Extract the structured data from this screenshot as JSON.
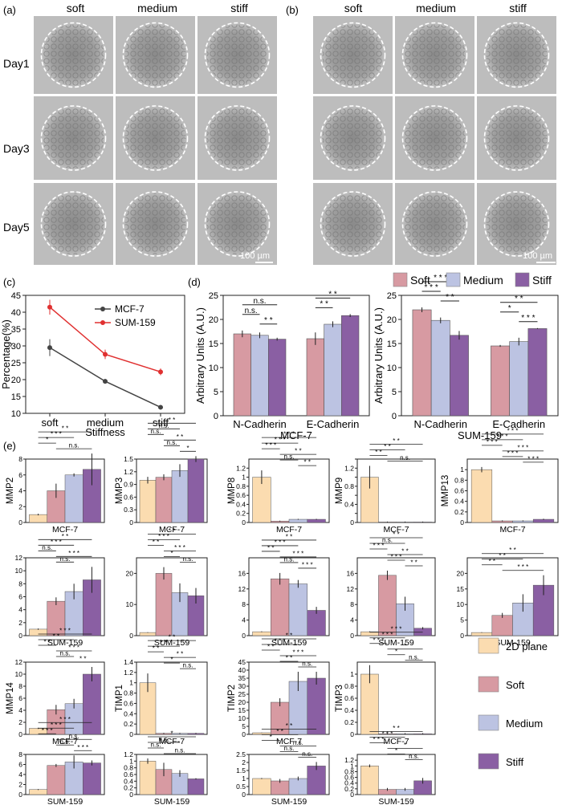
{
  "panels_micro": {
    "a": {
      "label": "(a)"
    },
    "b": {
      "label": "(b)"
    },
    "columns": [
      "soft",
      "medium",
      "stiff"
    ],
    "rows": [
      "Day1",
      "Day3",
      "Day5"
    ],
    "scalebar": "100 µm"
  },
  "chart_data": [
    {
      "id": "c",
      "panel_label": "(c)",
      "type": "line",
      "x": [
        "soft",
        "medium",
        "stiff"
      ],
      "xlabel": "Stiffness",
      "ylabel": "Percentage(%)",
      "ylim": [
        10,
        45
      ],
      "yticks": [
        10,
        15,
        20,
        25,
        30,
        35,
        40,
        45
      ],
      "series": [
        {
          "name": "MCF-7",
          "values": [
            29.5,
            19.5,
            11.8
          ],
          "errors": [
            2.5,
            0.7,
            0.3
          ],
          "color": "#444444"
        },
        {
          "name": "SUM-159",
          "values": [
            41.5,
            27.5,
            22.3
          ],
          "errors": [
            2.2,
            1.4,
            1.0
          ],
          "color": "#e03030"
        }
      ],
      "legend": "top-right"
    },
    {
      "id": "d1",
      "panel_label": "(d)",
      "type": "bar",
      "title": "MCF-7",
      "ylabel": "Arbitrary Units (A.U.)",
      "categories": [
        "N-Cadherin",
        "E-Cadherin"
      ],
      "ylim": [
        0,
        25
      ],
      "yticks": [
        0,
        5,
        10,
        15,
        20,
        25
      ],
      "series": [
        {
          "name": "Soft",
          "values": [
            17.0,
            16.0
          ],
          "errors": [
            0.7,
            1.3
          ]
        },
        {
          "name": "Medium",
          "values": [
            16.7,
            19.0
          ],
          "errors": [
            0.6,
            0.6
          ]
        },
        {
          "name": "Stiff",
          "values": [
            15.9,
            20.8
          ],
          "errors": [
            0.3,
            0.3
          ]
        }
      ],
      "annotations": [
        "n.s.",
        "n.s.",
        "* *",
        "* *",
        "* *"
      ]
    },
    {
      "id": "d2",
      "type": "bar",
      "title": "SUM-159",
      "ylabel": "Arbitrary Units (A.U.)",
      "categories": [
        "N-Cadherin",
        "E-Cadherin"
      ],
      "ylim": [
        0,
        25
      ],
      "yticks": [
        0,
        5,
        10,
        15,
        20,
        25
      ],
      "series": [
        {
          "name": "Soft",
          "values": [
            22.0,
            14.5
          ],
          "errors": [
            0.5,
            0.2
          ]
        },
        {
          "name": "Medium",
          "values": [
            19.8,
            15.4
          ],
          "errors": [
            0.6,
            0.8
          ]
        },
        {
          "name": "Stiff",
          "values": [
            16.7,
            18.1
          ],
          "errors": [
            0.9,
            0.1
          ]
        }
      ],
      "annotations": [
        "* * *",
        "* * *",
        "* *",
        "* *",
        "*",
        "* * *"
      ],
      "legend": [
        "Soft",
        "Medium",
        "Stiff"
      ]
    },
    {
      "id": "MMP2_MCF7",
      "panel_label": "(e)",
      "type": "bar",
      "ylabel": "MMP2",
      "xlabel": "MCF-7",
      "categories": [
        "2D plane",
        "Soft",
        "Medium",
        "Stiff"
      ],
      "values": [
        1,
        4,
        6,
        6.7
      ],
      "errors": [
        0.1,
        0.9,
        0.2,
        2.0
      ],
      "ylim": [
        0,
        8
      ],
      "yticks": [
        0,
        2,
        4,
        6,
        8
      ],
      "annotations": [
        "* *",
        "* * *",
        "*",
        "n.s."
      ]
    },
    {
      "id": "MMP3_MCF7",
      "type": "bar",
      "ylabel": "MMP3",
      "xlabel": "MCF-7",
      "categories": [
        "2D plane",
        "Soft",
        "Medium",
        "Stiff"
      ],
      "values": [
        1.0,
        1.07,
        1.23,
        1.5
      ],
      "errors": [
        0.08,
        0.07,
        0.15,
        0.07
      ],
      "ylim": [
        0,
        1.5
      ],
      "yticks": [
        0,
        0.3,
        0.6,
        0.9,
        1.2,
        1.5
      ],
      "annotations": [
        "* *",
        "n.s.",
        "n.s.",
        "* *",
        "n.s.",
        "*"
      ]
    },
    {
      "id": "MMP8_MCF7",
      "type": "bar",
      "ylabel": "MMP8",
      "xlabel": "MCF-7",
      "categories": [
        "2D plane",
        "Soft",
        "Medium",
        "Stiff"
      ],
      "values": [
        1.0,
        0.03,
        0.07,
        0.07
      ],
      "errors": [
        0.15,
        0.01,
        0.01,
        0.01
      ],
      "ylim": [
        0,
        1.4
      ],
      "yticks": [
        0,
        0.2,
        0.4,
        0.6,
        0.8,
        1.0,
        1.2
      ],
      "annotations": [
        "* * *",
        "* * *",
        "* * *",
        "* *",
        "n.s.",
        "* *"
      ]
    },
    {
      "id": "MMP9_MCF7",
      "type": "bar",
      "ylabel": "MMP9",
      "xlabel": "MCF-7",
      "categories": [
        "2D plane",
        "Soft",
        "Medium",
        "Stiff"
      ],
      "values": [
        1.0,
        0.01,
        0.01,
        0.01
      ],
      "errors": [
        0.25,
        0.01,
        0.01,
        0.01
      ],
      "ylim": [
        0,
        1.4
      ],
      "yticks": [
        0,
        0.2,
        0.4,
        0.6,
        0.8,
        1.0,
        1.2,
        1.4
      ],
      "annotations": [
        "* *",
        "* *",
        "* *",
        "n.s."
      ]
    },
    {
      "id": "MMP13_MCF7",
      "type": "bar",
      "ylabel": "MMP13",
      "xlabel": "MCF-7",
      "categories": [
        "2D plane",
        "Soft",
        "Medium",
        "Stiff"
      ],
      "values": [
        1.0,
        0.03,
        0.03,
        0.06
      ],
      "errors": [
        0.05,
        0.01,
        0.01,
        0.01
      ],
      "ylim": [
        0,
        1.2
      ],
      "yticks": [
        0,
        0.2,
        0.4,
        0.6,
        0.8,
        1.0
      ],
      "annotations": [
        "* * *",
        "* * *",
        "* * *",
        "* * *",
        "* * *",
        "* * *"
      ]
    },
    {
      "id": "MMP2_SUM159",
      "type": "bar",
      "xlabel": "SUM-159",
      "categories": [
        "2D plane",
        "Soft",
        "Medium",
        "Stiff"
      ],
      "values": [
        1,
        5.3,
        6.8,
        8.6
      ],
      "errors": [
        0.1,
        0.6,
        1.2,
        2.0
      ],
      "ylim": [
        0,
        12
      ],
      "yticks": [
        0,
        2,
        4,
        6,
        8,
        10,
        12
      ],
      "annotations": [
        "* *",
        "* * *",
        "n.s.",
        "* * *",
        "n.s."
      ]
    },
    {
      "id": "MMP3_SUM159",
      "type": "bar",
      "xlabel": "SUM-159",
      "categories": [
        "2D plane",
        "Soft",
        "Medium",
        "Stiff"
      ],
      "values": [
        1,
        20,
        13.8,
        12.8
      ],
      "errors": [
        0.1,
        2.0,
        3.0,
        2.5
      ],
      "ylim": [
        0,
        25
      ],
      "yticks": [
        0,
        10,
        20
      ],
      "annotations": [
        "* *",
        "* * *",
        "* *",
        "* * *",
        "*",
        "n.s."
      ]
    },
    {
      "id": "MMP8_SUM159",
      "type": "bar",
      "xlabel": "SUM-159",
      "categories": [
        "2D plane",
        "Soft",
        "Medium",
        "Stiff"
      ],
      "values": [
        1,
        14.6,
        13.3,
        6.5
      ],
      "errors": [
        0.1,
        1.5,
        1.0,
        0.9
      ],
      "ylim": [
        0,
        20
      ],
      "yticks": [
        0,
        4,
        8,
        12,
        16
      ],
      "annotations": [
        "* *",
        "* * *",
        "* *",
        "* * *",
        "n.s.",
        "* * *"
      ]
    },
    {
      "id": "MMP9_SUM159",
      "type": "bar",
      "xlabel": "SUM-159",
      "categories": [
        "2D plane",
        "Soft",
        "Medium",
        "Stiff"
      ],
      "values": [
        1,
        15.5,
        8.2,
        1.9
      ],
      "errors": [
        0.1,
        1.2,
        1.8,
        0.3
      ],
      "ylim": [
        0,
        20
      ],
      "yticks": [
        0,
        4,
        8,
        12,
        16
      ],
      "annotations": [
        "* *",
        "n.s.",
        "* * *",
        "* *",
        "* * *",
        "* *"
      ]
    },
    {
      "id": "MMP13_SUM159",
      "type": "bar",
      "xlabel": "SUM-159",
      "categories": [
        "2D plane",
        "Soft",
        "Medium",
        "Stiff"
      ],
      "values": [
        1,
        6.5,
        10.5,
        16.2
      ],
      "errors": [
        0.1,
        0.8,
        2.8,
        3.2
      ],
      "ylim": [
        0,
        25
      ],
      "yticks": [
        0,
        5,
        10,
        15,
        20
      ],
      "annotations": [
        "* *",
        "* *",
        "* *",
        "* * *"
      ]
    },
    {
      "id": "MMP14_MCF7",
      "type": "bar",
      "ylabel": "MMP14",
      "xlabel": "MCF-7",
      "categories": [
        "2D plane",
        "Soft",
        "Medium",
        "Stiff"
      ],
      "values": [
        1,
        4.1,
        5.1,
        10
      ],
      "errors": [
        0.1,
        0.8,
        0.8,
        1.2
      ],
      "ylim": [
        0,
        12
      ],
      "yticks": [
        0,
        2,
        4,
        6,
        8,
        10,
        12
      ],
      "annotations": [
        "* * *",
        "* *",
        "* *",
        "* * *",
        "n.s.",
        "* *"
      ]
    },
    {
      "id": "TIMP1_MCF7",
      "type": "bar",
      "ylabel": "TIMP1",
      "xlabel": "MCF-7",
      "categories": [
        "2D plane",
        "Soft",
        "Medium",
        "Stiff"
      ],
      "values": [
        1.0,
        0.02,
        0.02,
        0.02
      ],
      "errors": [
        0.18,
        0.01,
        0.01,
        0.01
      ],
      "ylim": [
        0,
        1.4
      ],
      "yticks": [
        0,
        0.2,
        0.4,
        0.6,
        0.8,
        1.0,
        1.2,
        1.4
      ],
      "annotations": [
        "* *",
        "* *",
        "* *",
        "* *",
        "*",
        "n.s."
      ]
    },
    {
      "id": "TIMP2_MCF7",
      "type": "bar",
      "ylabel": "TIMP2",
      "xlabel": "MCF-7",
      "categories": [
        "2D plane",
        "Soft",
        "Medium",
        "Stiff"
      ],
      "values": [
        1,
        20,
        33,
        35
      ],
      "errors": [
        0.1,
        2.5,
        6.0,
        4.0
      ],
      "ylim": [
        0,
        45
      ],
      "yticks": [
        0,
        5,
        10,
        15,
        20,
        25,
        30,
        35,
        40,
        45
      ],
      "annotations": [
        "* *",
        "* * *",
        "* *",
        "* * *",
        "* *",
        "n.s."
      ]
    },
    {
      "id": "TIMP3_MCF7",
      "type": "bar",
      "ylabel": "TIMP3",
      "xlabel": "MCF-7",
      "categories": [
        "2D plane",
        "Soft",
        "Medium",
        "Stiff"
      ],
      "values": [
        1.0,
        0.01,
        0.01,
        0.01
      ],
      "errors": [
        0.15,
        0.01,
        0.01,
        0.01
      ],
      "ylim": [
        0,
        1.2
      ],
      "yticks": [
        0,
        0.2,
        0.4,
        0.6,
        0.8,
        1.0
      ],
      "annotations": [
        "* * *",
        "* * *",
        "* * *",
        "*",
        "*",
        "n.s."
      ]
    },
    {
      "id": "MMP14_SUM159",
      "type": "bar",
      "xlabel": "SUM-159",
      "categories": [
        "2D plane",
        "Soft",
        "Medium",
        "Stiff"
      ],
      "values": [
        1,
        5.8,
        6.5,
        6.3
      ],
      "errors": [
        0.1,
        0.3,
        1.3,
        0.5
      ],
      "ylim": [
        0,
        8
      ],
      "yticks": [
        0,
        2,
        4,
        6,
        8
      ],
      "annotations": [
        "* * *",
        "* * *",
        "* * *",
        "n.s.",
        "n.s.",
        "* * *"
      ]
    },
    {
      "id": "TIMP1_SUM159",
      "type": "bar",
      "xlabel": "SUM-159",
      "categories": [
        "2D plane",
        "Soft",
        "Medium",
        "Stiff"
      ],
      "values": [
        1.0,
        0.75,
        0.63,
        0.47
      ],
      "errors": [
        0.08,
        0.2,
        0.1,
        0.02
      ],
      "ylim": [
        0,
        1.2
      ],
      "yticks": [
        0,
        0.2,
        0.4,
        0.6,
        0.8,
        1.0,
        1.2
      ],
      "annotations": [
        "*",
        "n.s.",
        "n.s.",
        "n.s."
      ]
    },
    {
      "id": "TIMP2_SUM159",
      "type": "bar",
      "xlabel": "SUM-159",
      "categories": [
        "2D plane",
        "Soft",
        "Medium",
        "Stiff"
      ],
      "values": [
        1.0,
        0.85,
        1.0,
        1.78
      ],
      "errors": [
        0.03,
        0.12,
        0.12,
        0.25
      ],
      "ylim": [
        0,
        2.5
      ],
      "yticks": [
        0,
        0.5,
        1.0,
        1.5,
        2.0,
        2.5
      ],
      "annotations": [
        "* *",
        "* *",
        "*",
        "n.s.",
        "n.s.",
        "n.s."
      ]
    },
    {
      "id": "TIMP3_SUM159",
      "type": "bar",
      "xlabel": "SUM-159",
      "categories": [
        "2D plane",
        "Soft",
        "Medium",
        "Stiff"
      ],
      "values": [
        1.0,
        0.18,
        0.18,
        0.48
      ],
      "errors": [
        0.05,
        0.05,
        0.05,
        0.1
      ],
      "ylim": [
        0,
        1.4
      ],
      "yticks": [
        0,
        0.2,
        0.4,
        0.6,
        0.8,
        1.0,
        1.2
      ],
      "annotations": [
        "* *",
        "* * *",
        "* * *",
        "*",
        "*",
        "n.s."
      ]
    }
  ],
  "legend_e": {
    "items": [
      "2D plane",
      "Soft",
      "Medium",
      "Stiff"
    ],
    "colors": [
      "#fbdcb0",
      "#d79aa2",
      "#bcc3e2",
      "#8a5fa3"
    ]
  },
  "colors": {
    "soft": "#d79aa2",
    "medium": "#bcc3e2",
    "stiff": "#8a5fa3",
    "plane": "#fbdcb0"
  }
}
